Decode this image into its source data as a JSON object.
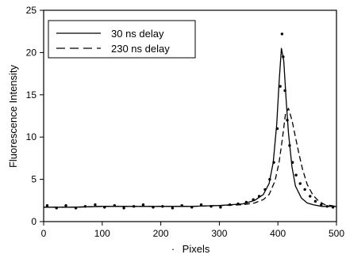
{
  "chart_data": {
    "type": "line",
    "xlabel": "Pixels",
    "ylabel": "Fluorescence Intensity",
    "xlim": [
      0,
      500
    ],
    "ylim": [
      0,
      25
    ],
    "xticks": [
      0,
      100,
      200,
      300,
      400,
      500
    ],
    "yticks": [
      0,
      5,
      10,
      15,
      20,
      25
    ],
    "grid": false,
    "legend_position": "top-left",
    "x_caption_mark": "·",
    "series": [
      {
        "name": "30 ns delay",
        "style": "solid",
        "color": "#000000",
        "x": [
          0,
          50,
          100,
          150,
          200,
          250,
          300,
          340,
          360,
          375,
          385,
          392,
          398,
          402,
          406,
          410,
          414,
          418,
          424,
          430,
          440,
          450,
          460,
          475,
          490,
          500
        ],
        "y": [
          1.7,
          1.7,
          1.8,
          1.8,
          1.8,
          1.8,
          1.9,
          2.1,
          2.5,
          3.2,
          4.5,
          7.0,
          11.5,
          16.5,
          20.5,
          19.0,
          14.5,
          10.5,
          6.5,
          4.2,
          2.8,
          2.2,
          2.0,
          1.8,
          1.8,
          1.8
        ]
      },
      {
        "name": "230 ns delay",
        "style": "dashed",
        "color": "#000000",
        "x": [
          0,
          50,
          100,
          150,
          200,
          250,
          300,
          340,
          360,
          375,
          385,
          395,
          402,
          408,
          413,
          418,
          424,
          430,
          436,
          442,
          450,
          460,
          470,
          480,
          490,
          500
        ],
        "y": [
          1.7,
          1.7,
          1.8,
          1.8,
          1.8,
          1.8,
          1.9,
          2.0,
          2.2,
          2.6,
          3.2,
          4.8,
          7.0,
          10.0,
          12.8,
          13.4,
          12.0,
          10.0,
          8.0,
          6.2,
          4.4,
          3.1,
          2.4,
          2.0,
          1.9,
          1.8
        ]
      }
    ],
    "scatter_points": {
      "x": [
        6,
        22,
        38,
        55,
        71,
        88,
        104,
        121,
        137,
        154,
        170,
        187,
        203,
        220,
        236,
        253,
        269,
        286,
        302,
        318,
        332,
        346,
        358,
        368,
        378,
        386,
        393,
        399,
        404,
        407,
        409,
        412,
        416,
        420,
        425,
        431,
        438,
        446,
        455,
        464,
        474,
        484,
        494
      ],
      "y": [
        1.9,
        1.6,
        1.9,
        1.6,
        1.8,
        2.0,
        1.7,
        1.9,
        1.6,
        1.8,
        2.0,
        1.7,
        1.8,
        1.6,
        1.9,
        1.7,
        2.0,
        1.8,
        1.7,
        2.0,
        2.1,
        2.3,
        2.6,
        3.0,
        3.8,
        5.0,
        7.0,
        11.0,
        16.0,
        22.2,
        19.5,
        15.5,
        12.0,
        9.0,
        7.0,
        5.5,
        4.5,
        3.8,
        3.0,
        2.4,
        2.0,
        1.8,
        1.7
      ]
    }
  }
}
